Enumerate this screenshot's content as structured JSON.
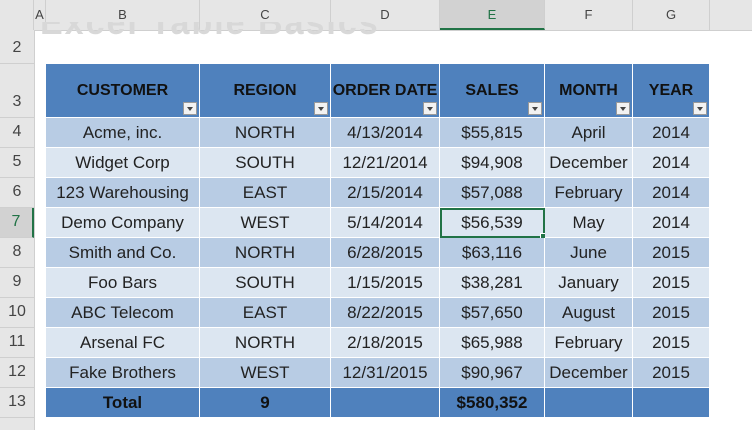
{
  "columns": [
    "A",
    "B",
    "C",
    "D",
    "E",
    "F",
    "G"
  ],
  "rows": [
    "2",
    "3",
    "4",
    "5",
    "6",
    "7",
    "8",
    "9",
    "10",
    "11",
    "12",
    "13"
  ],
  "ghost_title": "Excel Table Basics",
  "table": {
    "headers": [
      "CUSTOMER",
      "REGION",
      "ORDER DATE",
      "SALES",
      "MONTH",
      "YEAR"
    ],
    "data": [
      [
        "Acme, inc.",
        "NORTH",
        "4/13/2014",
        "$55,815",
        "April",
        "2014"
      ],
      [
        "Widget Corp",
        "SOUTH",
        "12/21/2014",
        "$94,908",
        "December",
        "2014"
      ],
      [
        "123 Warehousing",
        "EAST",
        "2/15/2014",
        "$57,088",
        "February",
        "2014"
      ],
      [
        "Demo Company",
        "WEST",
        "5/14/2014",
        "$56,539",
        "May",
        "2014"
      ],
      [
        "Smith and Co.",
        "NORTH",
        "6/28/2015",
        "$63,116",
        "June",
        "2015"
      ],
      [
        "Foo Bars",
        "SOUTH",
        "1/15/2015",
        "$38,281",
        "January",
        "2015"
      ],
      [
        "ABC Telecom",
        "EAST",
        "8/22/2015",
        "$57,650",
        "August",
        "2015"
      ],
      [
        "Arsenal FC",
        "NORTH",
        "2/18/2015",
        "$65,988",
        "February",
        "2015"
      ],
      [
        "Fake Brothers",
        "WEST",
        "12/31/2015",
        "$90,967",
        "December",
        "2015"
      ]
    ],
    "totals": [
      "Total",
      "9",
      "",
      "$580,352",
      "",
      ""
    ]
  },
  "selected_cell": "E7",
  "colors": {
    "header": "#4f81bd",
    "band_dark": "#b8cce4",
    "band_light": "#dce6f1",
    "selection": "#217346"
  }
}
